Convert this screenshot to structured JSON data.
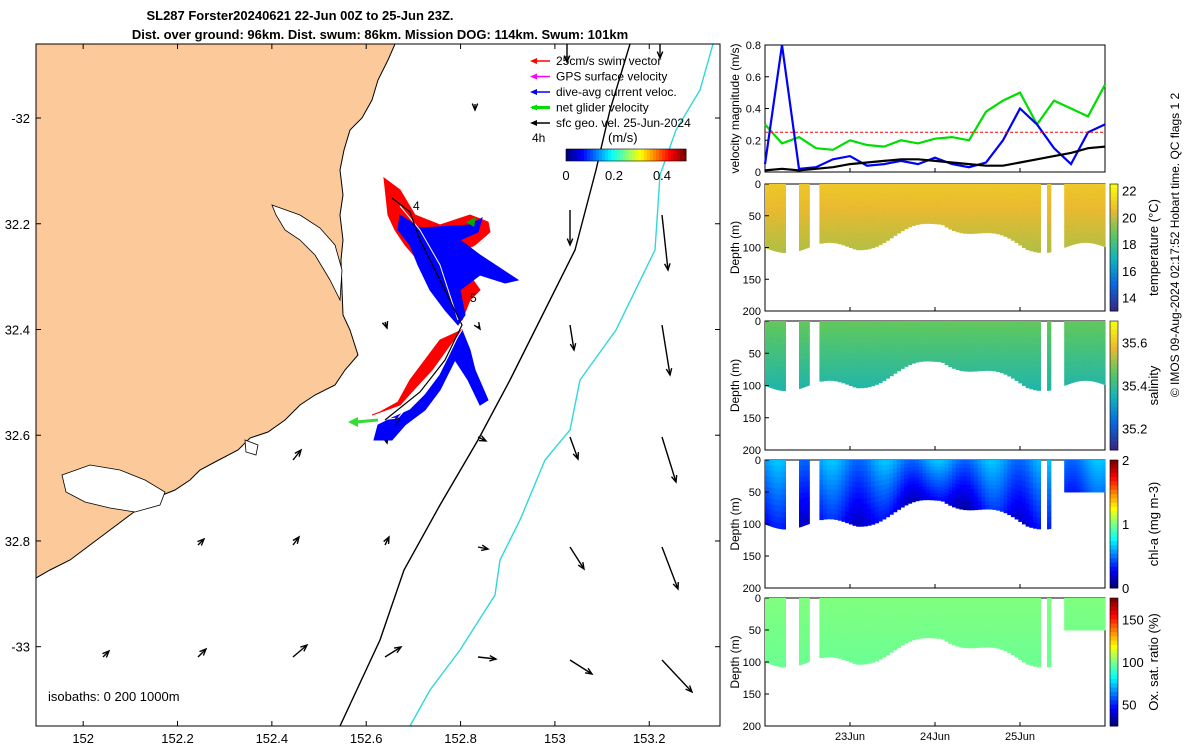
{
  "figure": {
    "title_line1": "SL287 Forster20240621 22-Jun 00Z to 25-Jun 23Z.",
    "title_line2": "Dist. over ground: 96km. Dist. swum: 86km. Mission DOG: 114km. Swum: 101km",
    "side_caption": "© IMOS 09-Aug-2024 02:17:52 Hobart time. QC flags 1  2"
  },
  "chart_data": [
    {
      "type": "map",
      "name": "glider track map",
      "x_ticks": [
        "152",
        "152.2",
        "152.4",
        "152.6",
        "152.8",
        "153",
        "153.2"
      ],
      "y_ticks": [
        "-32",
        "32.2",
        "32.4",
        "32.6",
        "32.8",
        "-33"
      ],
      "xlim": [
        151.9,
        153.35
      ],
      "ylim": [
        -33.15,
        -31.86
      ],
      "legend": [
        {
          "label": "25cm/s swim vector",
          "color": "#ff0000"
        },
        {
          "label": "GPS surface velocity",
          "color": "#ff00ff"
        },
        {
          "label": "dive-avg current veloc.",
          "color": "#0000ff"
        },
        {
          "label": "net glider velocity",
          "color": "#00dd00"
        },
        {
          "label": "sfc geo. vel. 25-Jun-2024",
          "color": "#000000"
        }
      ],
      "legend_scale_label": "4h",
      "colorbar": {
        "unit": "(m/s)",
        "ticks": [
          "0",
          "0.2",
          "0.4"
        ],
        "range": [
          0,
          0.5
        ]
      },
      "annotations": [
        "4",
        "5",
        "2"
      ],
      "isobaths_label": "isobaths: 0   200  1000m"
    },
    {
      "type": "line",
      "name": "velocity magnitude",
      "ylabel": "velocity magnitude (m/s)",
      "ylim": [
        0,
        0.8
      ],
      "y_ticks": [
        "0",
        "0.2",
        "0.4",
        "0.6",
        "0.8"
      ],
      "series": [
        {
          "name": "net glider velocity",
          "color": "#00dd00",
          "values": [
            0.3,
            0.18,
            0.22,
            0.15,
            0.14,
            0.2,
            0.17,
            0.16,
            0.2,
            0.18,
            0.21,
            0.22,
            0.2,
            0.38,
            0.45,
            0.5,
            0.3,
            0.45,
            0.4,
            0.35,
            0.55
          ]
        },
        {
          "name": "dive-avg current",
          "color": "#0000ff",
          "values": [
            0.05,
            0.8,
            0.02,
            0.03,
            0.08,
            0.1,
            0.04,
            0.05,
            0.07,
            0.05,
            0.09,
            0.05,
            0.03,
            0.06,
            0.2,
            0.4,
            0.3,
            0.15,
            0.05,
            0.25,
            0.3
          ]
        },
        {
          "name": "surface geostrophic",
          "color": "#000000",
          "values": [
            0.01,
            0.02,
            0.01,
            0.02,
            0.03,
            0.05,
            0.06,
            0.07,
            0.08,
            0.08,
            0.07,
            0.06,
            0.05,
            0.04,
            0.04,
            0.06,
            0.08,
            0.1,
            0.12,
            0.15,
            0.16
          ]
        },
        {
          "name": "25cm/s reference",
          "color": "#ff0000",
          "values": [
            0.25,
            0.25,
            0.25,
            0.25,
            0.25,
            0.25,
            0.25,
            0.25,
            0.25,
            0.25,
            0.25,
            0.25,
            0.25,
            0.25,
            0.25,
            0.25,
            0.25,
            0.25,
            0.25,
            0.25,
            0.25
          ]
        }
      ]
    },
    {
      "type": "heatmap",
      "name": "temperature section",
      "ylabel": "Depth (m)",
      "cbar_label": "temperature (°C)",
      "ylim": [
        0,
        200
      ],
      "y_ticks": [
        "0",
        "50",
        "100",
        "150",
        "200"
      ],
      "cbar_ticks": [
        "22",
        "20",
        "18",
        "16",
        "14"
      ],
      "cbar_range": [
        13,
        22.5
      ],
      "value_surface": 21.0,
      "value_deep": 19.8
    },
    {
      "type": "heatmap",
      "name": "salinity section",
      "ylabel": "Depth (m)",
      "cbar_label": "salinity",
      "ylim": [
        0,
        200
      ],
      "y_ticks": [
        "0",
        "50",
        "100",
        "150",
        "200"
      ],
      "cbar_ticks": [
        "35.6",
        "35.4",
        "35.2"
      ],
      "cbar_range": [
        35.1,
        35.7
      ],
      "value_surface": 35.47,
      "value_deep": 35.36
    },
    {
      "type": "heatmap",
      "name": "chlorophyll section",
      "ylabel": "Depth (m)",
      "cbar_label": "chl-a (mg m-3)",
      "ylim": [
        0,
        200
      ],
      "y_ticks": [
        "0",
        "50",
        "100",
        "150",
        "200"
      ],
      "cbar_ticks": [
        "2",
        "1",
        "0"
      ],
      "cbar_range": [
        0,
        2
      ],
      "value_surface": 0.55,
      "value_deep": 0.2
    },
    {
      "type": "heatmap",
      "name": "oxygen saturation section",
      "ylabel": "Depth (m)",
      "cbar_label": "Ox. sat. ratio (%)",
      "ylim": [
        0,
        200
      ],
      "y_ticks": [
        "0",
        "50",
        "100",
        "150",
        "200"
      ],
      "cbar_ticks": [
        "150",
        "100",
        "50"
      ],
      "cbar_range": [
        25,
        175
      ],
      "value_surface": 100,
      "value_deep": 97
    }
  ],
  "time_axis": {
    "ticks": [
      "23Jun",
      "24Jun",
      "25Jun"
    ]
  }
}
